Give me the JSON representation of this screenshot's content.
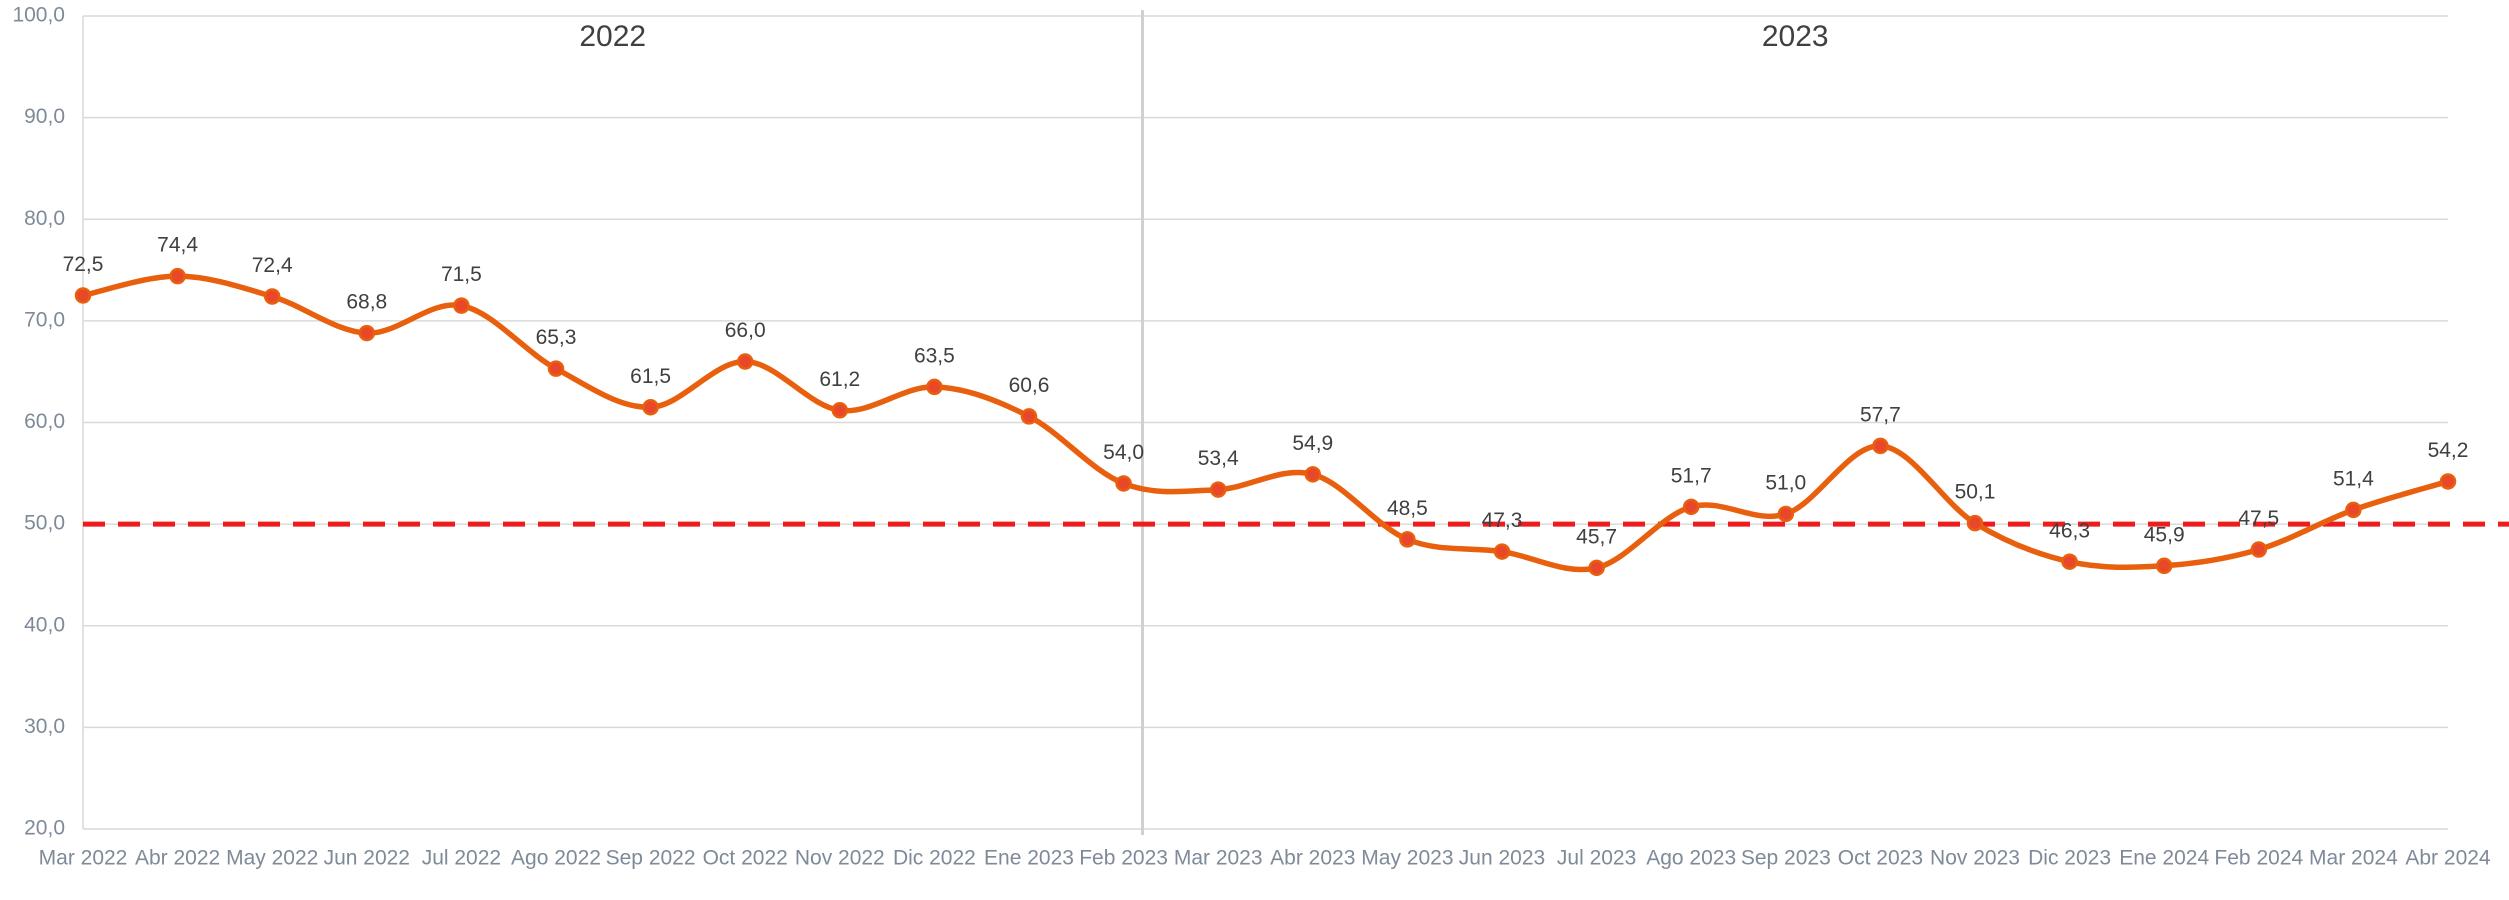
{
  "chart_data": {
    "type": "line",
    "categories": [
      "Mar 2022",
      "Abr 2022",
      "May 2022",
      "Jun 2022",
      "Jul 2022",
      "Ago 2022",
      "Sep 2022",
      "Oct 2022",
      "Nov 2022",
      "Dic 2022",
      "Ene 2023",
      "Feb 2023",
      "Mar 2023",
      "Abr 2023",
      "May 2023",
      "Jun 2023",
      "Jul 2023",
      "Ago 2023",
      "Sep 2023",
      "Oct 2023",
      "Nov 2023",
      "Dic 2023",
      "Ene 2024",
      "Feb 2024",
      "Mar 2024",
      "Abr 2024"
    ],
    "values": [
      72.5,
      74.4,
      72.4,
      68.8,
      71.5,
      65.3,
      61.5,
      66.0,
      61.2,
      63.5,
      60.6,
      54.0,
      53.4,
      54.9,
      48.5,
      47.3,
      45.7,
      51.7,
      51.0,
      57.7,
      50.1,
      46.3,
      45.9,
      47.5,
      51.4,
      54.2
    ],
    "value_labels": [
      "72,5",
      "74,4",
      "72,4",
      "68,8",
      "71,5",
      "65,3",
      "61,5",
      "66,0",
      "61,2",
      "63,5",
      "60,6",
      "54,0",
      "53,4",
      "54,9",
      "48,5",
      "47,3",
      "45,7",
      "51,7",
      "51,0",
      "57,7",
      "50,1",
      "46,3",
      "45,9",
      "47,5",
      "51,4",
      "54,2"
    ],
    "color": "#e8600e",
    "marker_color": "#e8472a",
    "ylim": [
      20,
      100
    ],
    "yticks": [
      {
        "value": 20,
        "label": "20,0"
      },
      {
        "value": 30,
        "label": "30,0"
      },
      {
        "value": 40,
        "label": "40,0"
      },
      {
        "value": 50,
        "label": "50,0"
      },
      {
        "value": 60,
        "label": "60,0"
      },
      {
        "value": 70,
        "label": "70,0"
      },
      {
        "value": 80,
        "label": "80,0"
      },
      {
        "value": 90,
        "label": "90,0"
      },
      {
        "value": 100,
        "label": "100,0"
      }
    ],
    "grid": true,
    "reference_line": {
      "value": 50,
      "color": "#ee1c1c"
    },
    "year_labels": [
      "2022",
      "2023"
    ]
  }
}
